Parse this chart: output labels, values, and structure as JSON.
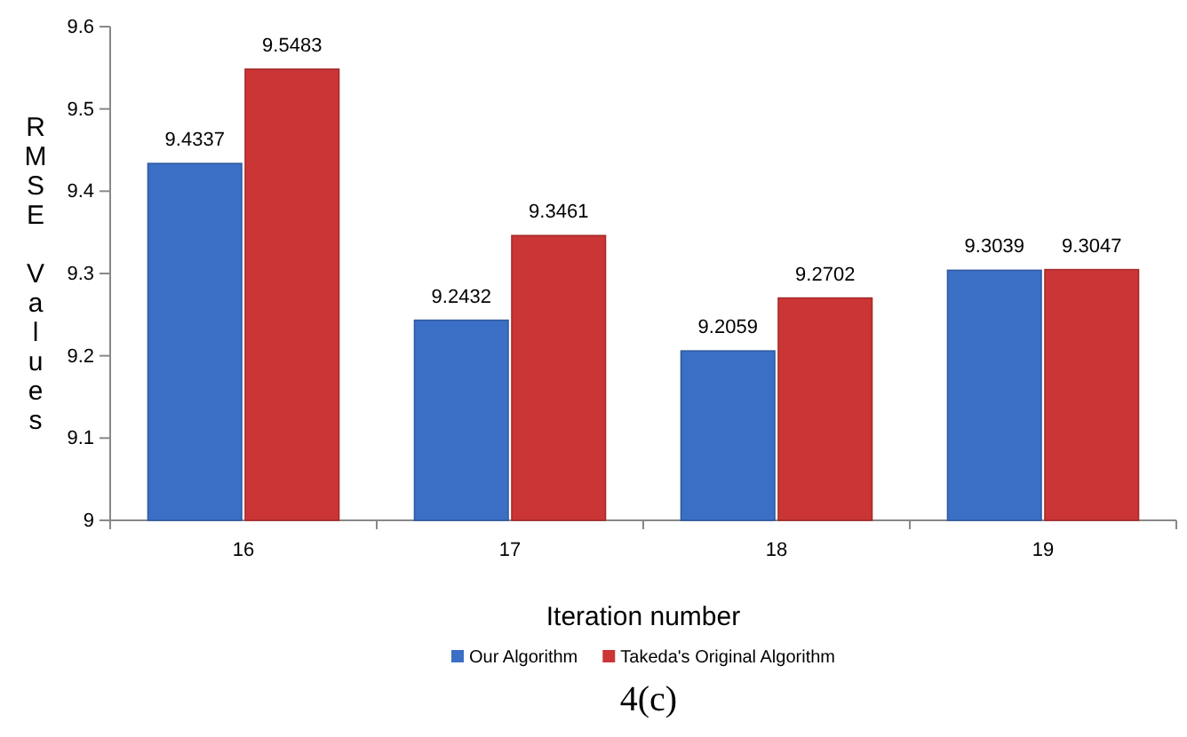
{
  "chart_data": {
    "type": "bar",
    "categories": [
      "16",
      "17",
      "18",
      "19"
    ],
    "series": [
      {
        "name": "Our Algorithm",
        "color": "#3b6fc6",
        "values": [
          9.4337,
          9.2432,
          9.2059,
          9.3039
        ]
      },
      {
        "name": "Takeda's Original Algorithm",
        "color": "#cc3535",
        "values": [
          9.5483,
          9.3461,
          9.2702,
          9.3047
        ]
      }
    ],
    "ylim": [
      9,
      9.6
    ],
    "yticks": [
      9,
      9.1,
      9.2,
      9.3,
      9.4,
      9.5,
      9.6
    ],
    "xlabel": "Iteration number",
    "ylabel": "RMSE Values",
    "annotations": [
      "4(c)"
    ],
    "data_labels": true,
    "legend": "bottom",
    "grid": false
  }
}
